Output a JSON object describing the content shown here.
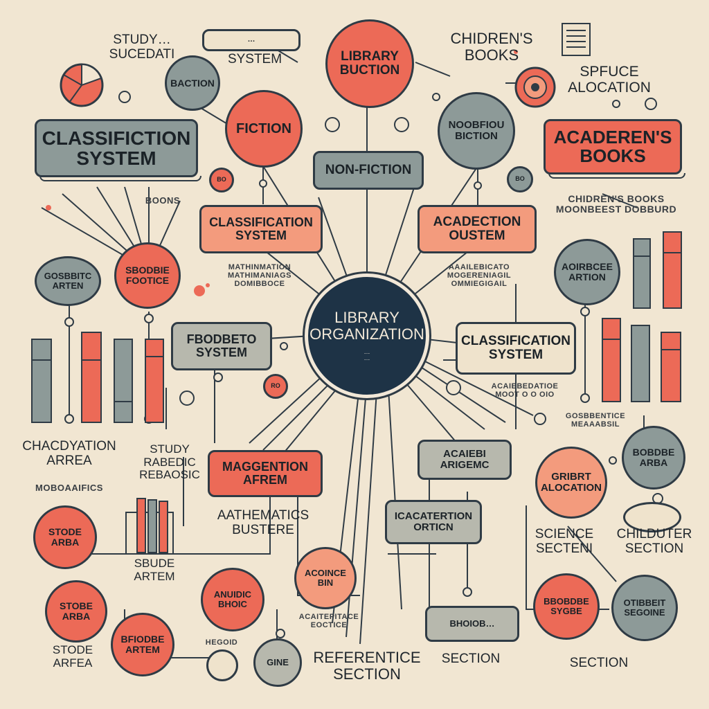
{
  "center": {
    "title": "LIBRARY\nORGANIZATION",
    "subtitle": "…\n…"
  },
  "nodes": {
    "library_buction": "LIBRARY\nBUCTION",
    "fiction": "FICTION",
    "non_fiction": "NON-FICTION",
    "noobfiou_biction": "NOOBFIOU\nBICTION",
    "classifiction_system": "CLASSIFICTION\nSYSTEM",
    "aguection_system_top": "…",
    "system_label": "SYSTEM",
    "baction": "BACTION",
    "acaderens_books": "ACADEREN'S\nBOOKS",
    "classification_system_left": "CLASSIFICATION\nSYSTEM",
    "acadection_oustem": "ACADECTION\nOUSTEM",
    "sbodbie_footice": "SBODBIE\nFOOTICE",
    "gosbbitc_arten": "GOSBBITC\nARTEN",
    "aoirbcee_artion": "AOIRBCEE\nARTION",
    "fbodbeto_system": "FBODBETO\nSYSTEM",
    "classification_system_right": "CLASSIFICATION\nSYSTEM",
    "maggention_afrem": "MAGGENTION\nAFREM",
    "acaiebi_arigemc": "ACAIEBI\nARIGEMC",
    "icacatertion_orticn": "ICACATERTION\nORTICN",
    "gribrt_alocation": "GRIBRT\nALOCATION",
    "bobdbe_arba": "BOBDBE\nARBA",
    "stode_arba_left": "STODE\nARBA",
    "stobe_arba": "STOBE\nARBA",
    "acoince_bin": "ACOINCE\nBIN",
    "anuidic_bhoic": "ANUIDIC\nBHOIC",
    "bfiodbe_artem": "BFIODBE\nARTEM",
    "bbobdbe_sygbe": "BBOBDBE\nSYGBE",
    "otibbeit_segoine": "OTIBBEIT\nSEGOINE",
    "bhoiob_bottom": "BHOIOB…",
    "gine": "GINE"
  },
  "labels": {
    "study_sucedati": "STUDY…\nSUCEDATI",
    "childrens_books": "CHIDREN'S\nBOOKS",
    "space_allocation": "SPFUCE\nALOCATION",
    "boons": "BOONS",
    "childrens_books_sub": "CHIDREN'S BOOKS\nMOONBEEST DOBBURD",
    "mathematics_sub": "MATHINMATION\nMATHIMANIAGS\nDOMIBBOCE",
    "acad_sub": "AAAILEBICATO\nMOGERENIAGIL\nOMMIEGIGAIL",
    "chacdyation_arrea": "CHACDYATION\nARREA",
    "study_rabedic": "STUDY\nRABEDIC\nREBAOSIC",
    "moboaaifics": "MOBOAAIFICS",
    "aathematics_bustere": "AATHEMATICS\nBUSTERE",
    "acad_right_sub": "ACAIEBEDATIOE\nMOOT O O OIO",
    "gosbbentice": "GOSBBENTICE\nMEAAABSIL",
    "science_secteni": "SCIENCE\nSECTENI",
    "childuter_section": "CHILDUTER\nSECTION",
    "sbude_artem": "SBUDE\nARTEM",
    "acaitepitace": "ACAITEPITACE\nEOCTICE",
    "stode_arfea": "STODE\nARFEA",
    "hegoid": "HEGOID",
    "referentice_section": "REFERENTICE\nSECTION",
    "section_mid": "SECTION",
    "section_right": "SECTION",
    "bo": "BO",
    "ro": "RO",
    "bo2": "BO"
  },
  "colors": {
    "coral": "#ec6a57",
    "peach": "#f39b7d",
    "gray": "#8d9a98",
    "navy": "#1e3346",
    "ink": "#2f3b45",
    "paper": "#f1e6d2"
  }
}
